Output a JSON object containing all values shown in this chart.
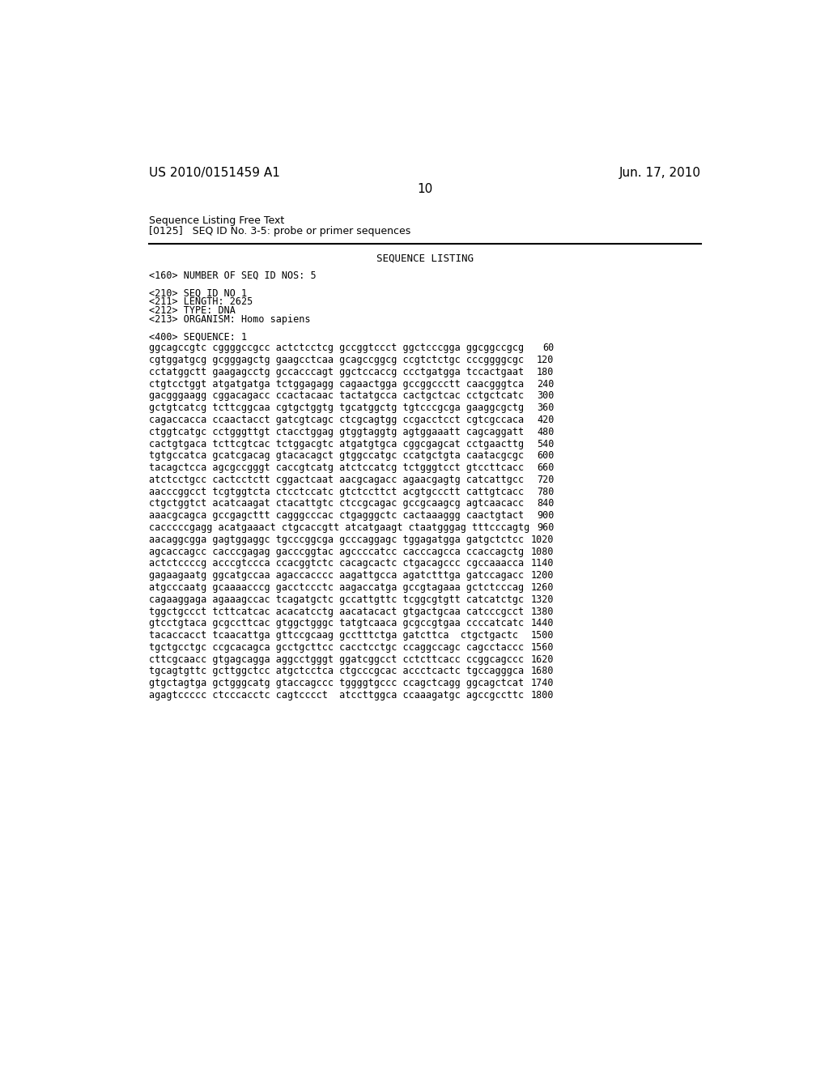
{
  "header_left": "US 2010/0151459 A1",
  "header_right": "Jun. 17, 2010",
  "page_number": "10",
  "pre_text_line1": "Sequence Listing Free Text",
  "pre_text_line2": "[0125]   SEQ ID No. 3-5: probe or primer sequences",
  "section_title": "SEQUENCE LISTING",
  "metadata": [
    "<160> NUMBER OF SEQ ID NOS: 5",
    "",
    "<210> SEQ ID NO 1",
    "<211> LENGTH: 2625",
    "<212> TYPE: DNA",
    "<213> ORGANISM: Homo sapiens",
    "",
    "<400> SEQUENCE: 1"
  ],
  "sequences": [
    [
      "ggcagccgtc cggggccgcc actctcctcg gccggtccct ggctcccgga ggcggccgcg",
      "60"
    ],
    [
      "cgtggatgcg gcgggagctg gaagcctcaa gcagccggcg ccgtctctgc cccggggcgc",
      "120"
    ],
    [
      "cctatggctt gaagagcctg gccacccagt ggctccaccg ccctgatgga tccactgaat",
      "180"
    ],
    [
      "ctgtcctggt atgatgatga tctggagagg cagaactgga gccggccctt caacgggtca",
      "240"
    ],
    [
      "gacgggaagg cggacagacc ccactacaac tactatgcca cactgctcac cctgctcatc",
      "300"
    ],
    [
      "gctgtcatcg tcttcggcaa cgtgctggtg tgcatggctg tgtcccgcga gaaggcgctg",
      "360"
    ],
    [
      "cagaccacca ccaactacct gatcgtcagc ctcgcagtgg ccgacctcct cgtcgccaca",
      "420"
    ],
    [
      "ctggtcatgc cctgggttgt ctacctggag gtggtaggtg agtggaaatt cagcaggatt",
      "480"
    ],
    [
      "cactgtgaca tcttcgtcac tctggacgtc atgatgtgca cggcgagcat cctgaacttg",
      "540"
    ],
    [
      "tgtgccatca gcatcgacag gtacacagct gtggccatgc ccatgctgta caatacgcgc",
      "600"
    ],
    [
      "tacagctcca agcgccgggt caccgtcatg atctccatcg tctgggtcct gtccttcacc",
      "660"
    ],
    [
      "atctcctgcc cactcctctt cggactcaat aacgcagacc agaacgagtg catcattgcc",
      "720"
    ],
    [
      "aacccggcct tcgtggtcta ctcctccatc gtctccttct acgtgccctt cattgtcacc",
      "780"
    ],
    [
      "ctgctggtct acatcaagat ctacattgtc ctccgcagac gccgcaagcg agtcaacacc",
      "840"
    ],
    [
      "aaacgcagca gccgagcttt cagggcccac ctgagggctc cactaaaggg caactgtact",
      "900"
    ],
    [
      "cacccccgagg acatgaaact ctgcaccgtt atcatgaagt ctaatgggag tttcccagtg",
      "960"
    ],
    [
      "aacaggcgga gagtggaggc tgcccggcga gcccaggagc tggagatgga gatgctctcc",
      "1020"
    ],
    [
      "agcaccagcc cacccgagag gacccggtac agccccatcc cacccagcca ccaccagctg",
      "1080"
    ],
    [
      "actctccccg acccgtccca ccacggtctc cacagcactc ctgacagccc cgccaaacca",
      "1140"
    ],
    [
      "gagaagaatg ggcatgccaa agaccacccc aagattgcca agatctttga gatccagacc",
      "1200"
    ],
    [
      "atgcccaatg gcaaaacccg gacctccctc aagaccatga gccgtagaaa gctctcccag",
      "1260"
    ],
    [
      "cagaaggaga agaaagccac tcagatgctc gccattgttc tcggcgtgtt catcatctgc",
      "1320"
    ],
    [
      "tggctgccct tcttcatcac acacatcctg aacatacact gtgactgcaa catcccgcct",
      "1380"
    ],
    [
      "gtcctgtaca gcgccttcac gtggctgggc tatgtcaaca gcgccgtgaa ccccatcatc",
      "1440"
    ],
    [
      "tacaccacct tcaacattga gttccgcaag gcctttctga gatcttca  ctgctgactc",
      "1500"
    ],
    [
      "tgctgcctgc ccgcacagca gcctgcttcc cacctcctgc ccaggccagc cagcctaccc",
      "1560"
    ],
    [
      "cttcgcaacc gtgagcagga aggcctgggt ggatcggcct cctcttcacc ccggcagccc",
      "1620"
    ],
    [
      "tgcagtgttc gcttggctcc atgctcctca ctgcccgcac accctcactc tgccagggca",
      "1680"
    ],
    [
      "gtgctagtga gctgggcatg gtaccagccc tggggtgccc ccagctcagg ggcagctcat",
      "1740"
    ],
    [
      "agagtccccc ctcccacctc cagtcccct  atccttggca ccaaagatgc agccgccttc",
      "1800"
    ]
  ],
  "background_color": "#ffffff",
  "text_color": "#000000",
  "font_size_header": 11,
  "font_size_body": 9,
  "font_size_pre": 9,
  "font_size_sequence": 8.5,
  "font_size_section_title": 9
}
